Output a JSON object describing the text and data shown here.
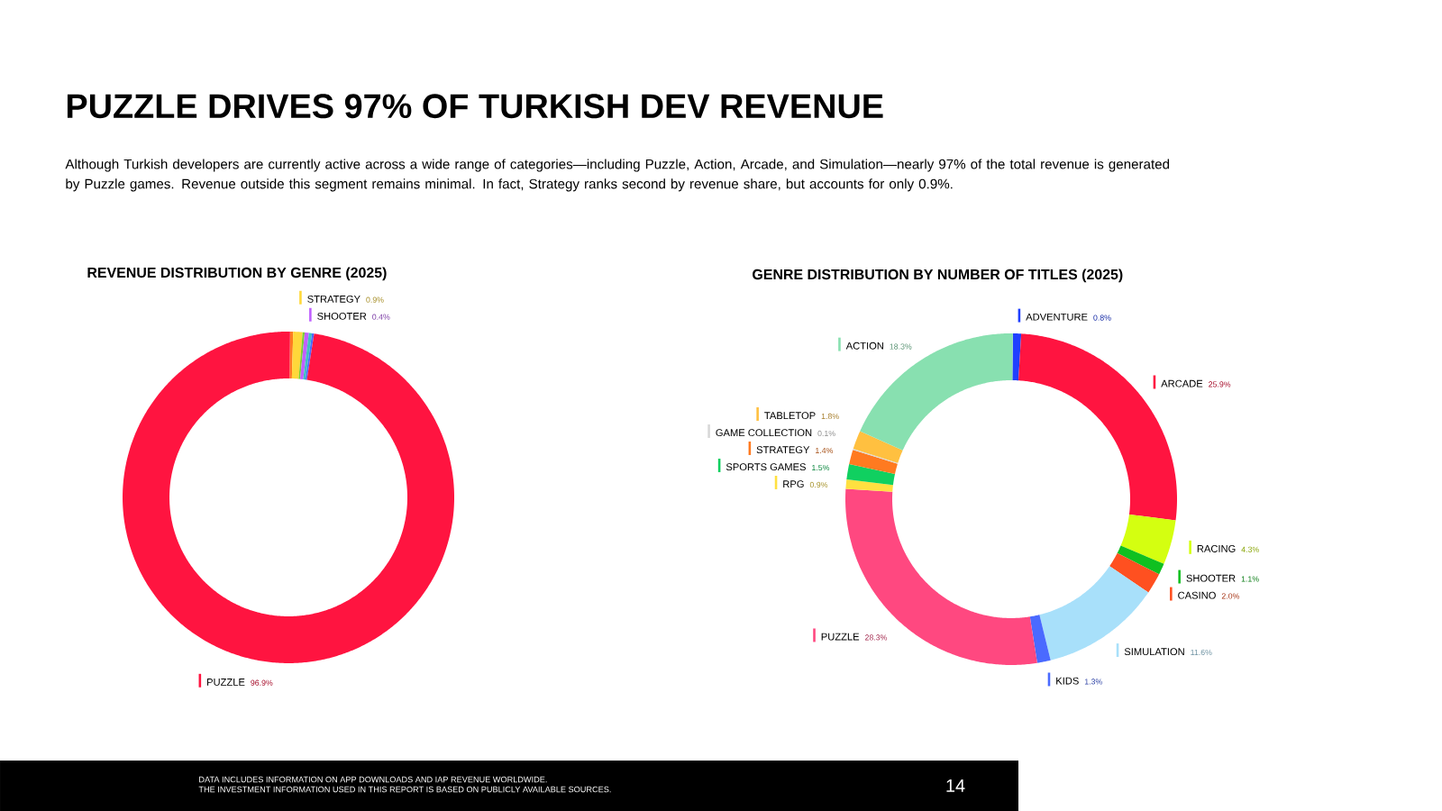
{
  "chart_data": [
    {
      "type": "other",
      "title": "PUZZLE DRIVES 97% OF TURKISH DEV REVENUE",
      "subtitle": "Although Turkish developers are currently active across a wide range of categories—including Puzzle, Action, Arcade, and Simulation—nearly 97% of the total revenue is generated by Puzzle games. Revenue outside this segment remains minimal. In fact, Strategy ranks second by revenue share, but accounts for only 0.9%.",
      "annotations": [
        "DATA INCLUDES INFORMATION ON APP DOWNLOADS AND IAP REVENUE WORLDWIDE.",
        "THE INVESTMENT INFORMATION USED IN THIS REPORT IS BASED ON PUBLICLY AVAILABLE SOURCES.",
        "14"
      ]
    },
    {
      "type": "donut",
      "title": "REVENUE DISTRIBUTION BY GENRE (2025)",
      "categories": [
        null,
        "STRATEGY",
        null,
        "SHOOTER",
        null,
        null,
        "PUZZLE"
      ],
      "values": [
        0.3,
        0.9,
        0.2,
        0.4,
        0.3,
        0.2,
        96.9
      ],
      "value_labels": [
        null,
        "0.9%",
        null,
        "0.4%",
        null,
        null,
        "96.9%"
      ],
      "colors": [
        "#ff7a20",
        "#ffd83a",
        "#7ad030",
        "#c060ff",
        "#40c0c0",
        "#4a6aff",
        "#ff1440"
      ],
      "legend": "top"
    },
    {
      "type": "donut",
      "title": "GENRE DISTRIBUTION BY NUMBER OF TITLES (2025)",
      "categories": [
        "ADVENTURE",
        "ARCADE",
        "RACING",
        "SHOOTER",
        "CASINO",
        "SIMULATION",
        "KIDS",
        "PUZZLE",
        "RPG",
        "SPORTS GAMES",
        "STRATEGY",
        "GAME COLLECTION",
        "TABLETOP",
        "ACTION"
      ],
      "values": [
        0.8,
        25.9,
        4.3,
        1.1,
        2.0,
        11.6,
        1.3,
        28.3,
        0.9,
        1.5,
        1.4,
        0.1,
        1.8,
        18.3
      ],
      "value_labels": [
        "0.8%",
        "25.9%",
        "4.3%",
        "1.1%",
        "2.0%",
        "11.6%",
        "1.3%",
        "28.3%",
        "0.9%",
        "1.5%",
        "1.4%",
        "0.1%",
        "1.8%",
        "18.3%"
      ],
      "colors": [
        "#2040ff",
        "#ff1440",
        "#d4ff10",
        "#10c020",
        "#ff5020",
        "#a8e0fa",
        "#4a6aff",
        "#ff4880",
        "#ffe040",
        "#10d060",
        "#ff7a20",
        "#d8d8d8",
        "#ffc040",
        "#88e0b0"
      ],
      "legend": "left"
    }
  ]
}
